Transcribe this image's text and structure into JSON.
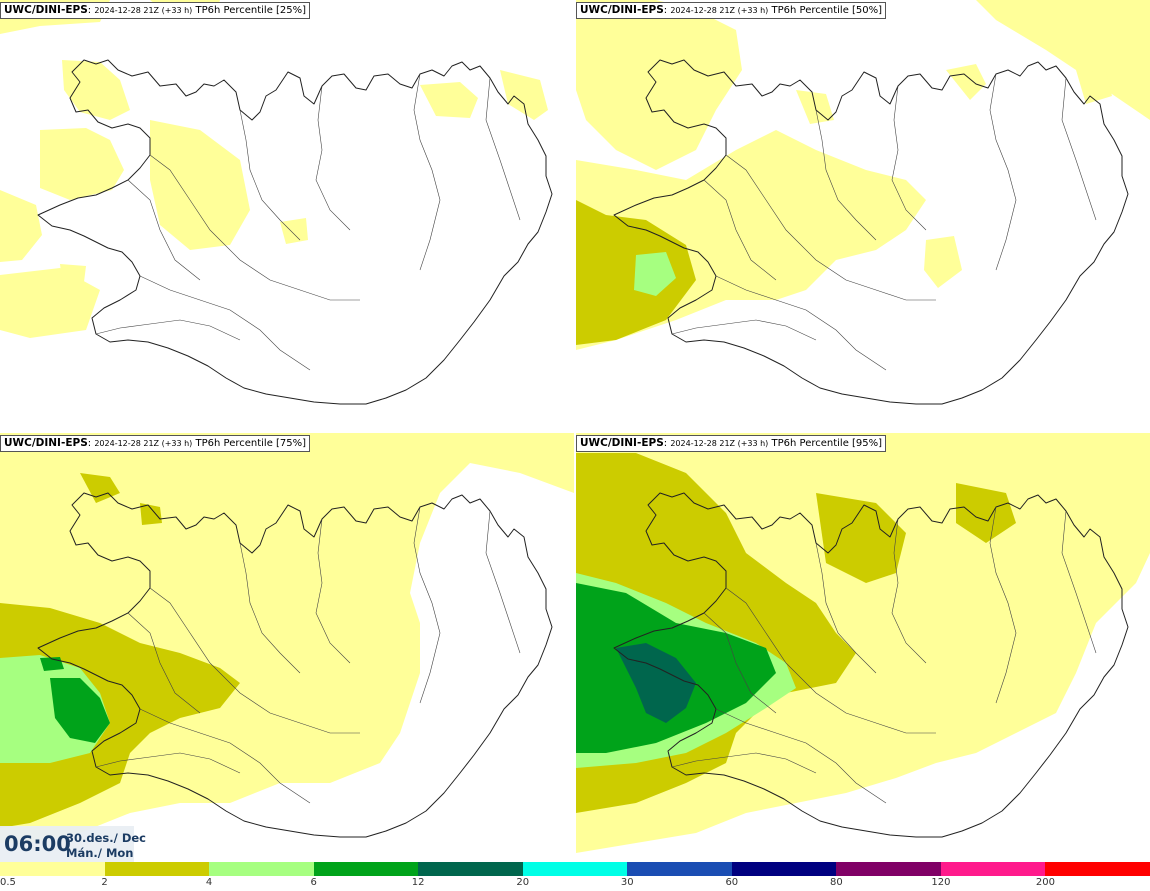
{
  "panels": [
    {
      "model": "UWC/DINI-EPS",
      "run": "2024-12-28 21Z (+33 h)",
      "variable": "TP6h Percentile [25%]"
    },
    {
      "model": "UWC/DINI-EPS",
      "run": "2024-12-28 21Z (+33 h)",
      "variable": "TP6h Percentile [50%]"
    },
    {
      "model": "UWC/DINI-EPS",
      "run": "2024-12-28 21Z (+33 h)",
      "variable": "TP6h Percentile [75%]"
    },
    {
      "model": "UWC/DINI-EPS",
      "run": "2024-12-28 21Z (+33 h)",
      "variable": "TP6h Percentile [95%]"
    }
  ],
  "valid_time": {
    "time": "06:00",
    "date_line1": "30.des./ Dec",
    "date_line2": "Mán./ Mon"
  },
  "legend": {
    "colors": [
      "#ffff99",
      "#cccc00",
      "#a6ff80",
      "#00a31a",
      "#00664d",
      "#00ffe6",
      "#1a4db3",
      "#000080",
      "#800066",
      "#ff1a8c",
      "#ff0000"
    ],
    "ticks": [
      "0.5",
      "2",
      "4",
      "6",
      "12",
      "20",
      "30",
      "60",
      "80",
      "120",
      "200"
    ]
  },
  "colors": {
    "level1": "#ffff99",
    "level2": "#cccc00",
    "level3": "#a6ff80",
    "level4": "#00a31a",
    "level5": "#00664d",
    "coast": "#222222"
  }
}
